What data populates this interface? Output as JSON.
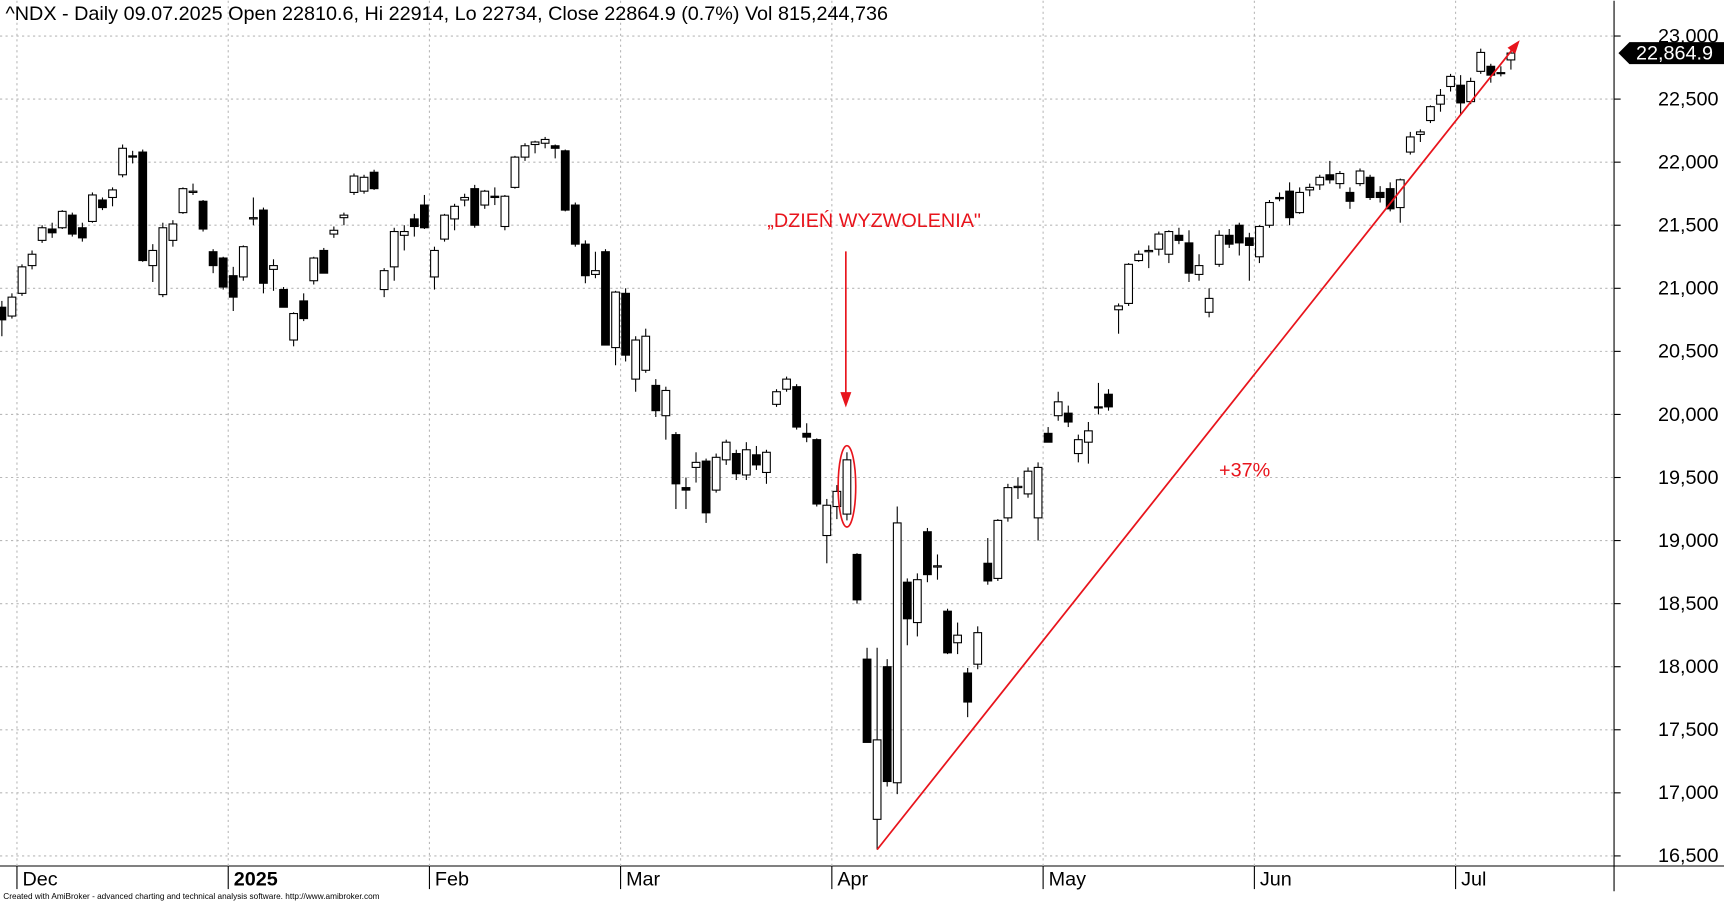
{
  "chart_data": {
    "type": "candlestick",
    "title": "^NDX - Daily 09.07.2025 Open 22810.6, Hi 22914, Lo 22734, Close 22864.9 (0.7%) Vol 815,244,736",
    "footer": "Created with AmiBroker - advanced charting and technical analysis software. http://www.amibroker.com",
    "annotations": [
      "„DZIEŃ WYZWOLENIA\"",
      "+37%"
    ],
    "last_price_label": "22,864.9",
    "up_color": "#ffffff",
    "down_color": "#000000",
    "annotation_color": "#e8141c",
    "grid": true,
    "ylim": [
      16420,
      23280
    ],
    "yticks": [
      {
        "value": 16500,
        "label": "16,500"
      },
      {
        "value": 17000,
        "label": "17,000"
      },
      {
        "value": 17500,
        "label": "17,500"
      },
      {
        "value": 18000,
        "label": "18,000"
      },
      {
        "value": 18500,
        "label": "18,500"
      },
      {
        "value": 19000,
        "label": "19,000"
      },
      {
        "value": 19500,
        "label": "19,500"
      },
      {
        "value": 20000,
        "label": "20,000"
      },
      {
        "value": 20500,
        "label": "20,500"
      },
      {
        "value": 21000,
        "label": "21,000"
      },
      {
        "value": 21500,
        "label": "21,500"
      },
      {
        "value": 22000,
        "label": "22,000"
      },
      {
        "value": 22500,
        "label": "22,500"
      },
      {
        "value": 23000,
        "label": "23,000"
      }
    ],
    "categories": [
      null,
      null,
      "Dec",
      null,
      null,
      null,
      null,
      null,
      null,
      null,
      null,
      null,
      null,
      null,
      null,
      null,
      null,
      null,
      null,
      null,
      null,
      null,
      null,
      "2025",
      null,
      null,
      null,
      null,
      null,
      null,
      null,
      null,
      null,
      null,
      null,
      null,
      null,
      null,
      null,
      null,
      null,
      null,
      null,
      "Feb",
      null,
      null,
      null,
      null,
      null,
      null,
      null,
      null,
      null,
      null,
      null,
      null,
      null,
      null,
      null,
      null,
      null,
      null,
      "Mar",
      null,
      null,
      null,
      null,
      null,
      null,
      null,
      null,
      null,
      null,
      null,
      null,
      null,
      null,
      null,
      null,
      null,
      null,
      null,
      null,
      "Apr",
      null,
      null,
      null,
      null,
      null,
      null,
      null,
      null,
      null,
      null,
      null,
      null,
      null,
      null,
      null,
      null,
      null,
      null,
      null,
      null,
      "May",
      null,
      null,
      null,
      null,
      null,
      null,
      null,
      null,
      null,
      null,
      null,
      null,
      null,
      null,
      null,
      null,
      null,
      null,
      null,
      null,
      "Jun",
      null,
      null,
      null,
      null,
      null,
      null,
      null,
      null,
      null,
      null,
      null,
      null,
      null,
      null,
      null,
      null,
      null,
      null,
      null,
      "Jul",
      null,
      null,
      null,
      null,
      null
    ],
    "open": [
      20850,
      20780,
      20960,
      21180,
      21380,
      21470,
      21480,
      21580,
      21480,
      21530,
      21700,
      21720,
      21900,
      22050,
      22080,
      21180,
      20950,
      21380,
      21600,
      21760,
      21690,
      21290,
      21240,
      21100,
      21090,
      21550,
      21620,
      21150,
      20990,
      20590,
      20900,
      21060,
      21300,
      21430,
      21560,
      21760,
      21770,
      21920,
      20990,
      21170,
      21420,
      21550,
      21660,
      21090,
      21390,
      21550,
      21700,
      21790,
      21660,
      21730,
      21490,
      21800,
      22040,
      22140,
      22150,
      22130,
      22090,
      21660,
      21350,
      21110,
      21290,
      20530,
      20960,
      20280,
      20350,
      20230,
      19990,
      19840,
      19420,
      19580,
      19630,
      19400,
      19640,
      19690,
      19520,
      19680,
      19540,
      20080,
      20200,
      20220,
      19850,
      19800,
      19040,
      19270,
      19210,
      18890,
      18060,
      16790,
      18000,
      17080,
      18670,
      18350,
      19070,
      18790,
      18440,
      18190,
      17950,
      18020,
      18820,
      18700,
      19180,
      19420,
      19370,
      19180,
      19850,
      19990,
      20010,
      19690,
      19780,
      20060,
      20160,
      20830,
      20880,
      21220,
      21290,
      21310,
      21270,
      21420,
      21360,
      21110,
      20810,
      21190,
      21420,
      21500,
      21400,
      21250,
      21500,
      21720,
      21770,
      21600,
      21780,
      21820,
      21900,
      21830,
      21760,
      21830,
      21880,
      21760,
      21790,
      21640,
      22080,
      22220,
      22330,
      22460,
      22600,
      22610,
      22480,
      22720,
      22760,
      22710,
      22810.6
    ],
    "high": [
      20900,
      20960,
      21190,
      21300,
      21500,
      21520,
      21620,
      21600,
      21520,
      21760,
      21720,
      21800,
      22140,
      22090,
      22100,
      21350,
      21520,
      21540,
      21800,
      21830,
      21700,
      21310,
      21250,
      21170,
      21340,
      21720,
      21640,
      21230,
      21010,
      20810,
      20960,
      21250,
      21320,
      21490,
      21600,
      21910,
      21900,
      21940,
      21160,
      21480,
      21500,
      21590,
      21740,
      21330,
      21590,
      21670,
      21750,
      21820,
      21780,
      21800,
      21740,
      22050,
      22150,
      22170,
      22200,
      22140,
      22100,
      21680,
      21380,
      21290,
      21310,
      20980,
      21000,
      20620,
      20680,
      20280,
      20220,
      19860,
      19500,
      19700,
      19650,
      19690,
      19800,
      19720,
      19780,
      19750,
      19720,
      20200,
      20300,
      20240,
      19930,
      19810,
      19330,
      19440,
      19700,
      18900,
      18150,
      18150,
      18060,
      19270,
      18700,
      18740,
      19100,
      18890,
      18460,
      18350,
      17990,
      18320,
      19020,
      19170,
      19450,
      19500,
      19580,
      19620,
      19900,
      20180,
      20070,
      19840,
      19940,
      20250,
      20200,
      20880,
      21200,
      21300,
      21340,
      21450,
      21460,
      21480,
      21460,
      21270,
      21000,
      21460,
      21470,
      21520,
      21440,
      21500,
      21700,
      21760,
      21840,
      21800,
      21830,
      21900,
      22010,
      21930,
      21800,
      21950,
      21900,
      21810,
      21840,
      21870,
      22240,
      22260,
      22450,
      22580,
      22700,
      22690,
      22670,
      22900,
      22780,
      22760,
      22914
    ],
    "low": [
      20620,
      20760,
      20940,
      21150,
      21360,
      21400,
      21470,
      21410,
      21370,
      21520,
      21620,
      21650,
      21880,
      21990,
      21210,
      21050,
      20930,
      21330,
      21590,
      21740,
      21450,
      21120,
      20990,
      20820,
      21060,
      21500,
      20960,
      20980,
      20850,
      20540,
      20740,
      21030,
      21120,
      21400,
      21500,
      21740,
      21750,
      21780,
      20930,
      21060,
      21300,
      21410,
      21470,
      20990,
      21370,
      21460,
      21650,
      21480,
      21630,
      21660,
      21460,
      21790,
      22010,
      22070,
      22110,
      22030,
      21610,
      21330,
      21040,
      21080,
      20550,
      20390,
      20420,
      20180,
      20330,
      19980,
      19800,
      19250,
      19250,
      19460,
      19140,
      19380,
      19600,
      19480,
      19480,
      19560,
      19450,
      20060,
      20180,
      19880,
      19780,
      19270,
      18820,
      19170,
      19160,
      18500,
      17400,
      16550,
      17050,
      16990,
      18170,
      18240,
      18670,
      18690,
      18100,
      18100,
      17600,
      17980,
      18650,
      18680,
      19150,
      19330,
      19340,
      19000,
      19780,
      19950,
      19900,
      19620,
      19610,
      20000,
      20030,
      20640,
      20860,
      21210,
      21160,
      21260,
      21200,
      21350,
      21050,
      21060,
      20770,
      21170,
      21320,
      21260,
      21060,
      21200,
      21480,
      21690,
      21500,
      21590,
      21730,
      21780,
      21830,
      21790,
      21630,
      21810,
      21700,
      21680,
      21610,
      21520,
      22060,
      22160,
      22310,
      22400,
      22560,
      22380,
      22460,
      22700,
      22630,
      22680,
      22734
    ],
    "close": [
      20750,
      20930,
      21170,
      21270,
      21480,
      21440,
      21610,
      21430,
      21400,
      21740,
      21640,
      21780,
      22110,
      22040,
      21220,
      21300,
      21480,
      21510,
      21790,
      21770,
      21470,
      21180,
      21010,
      20930,
      21330,
      21560,
      21040,
      21180,
      20850,
      20800,
      20760,
      21240,
      21120,
      21460,
      21580,
      21890,
      21880,
      21790,
      21140,
      21450,
      21450,
      21490,
      21480,
      21300,
      21580,
      21650,
      21720,
      21500,
      21770,
      21720,
      21730,
      22040,
      22130,
      22160,
      22180,
      22110,
      21620,
      21350,
      21100,
      21140,
      20550,
      20970,
      20470,
      20590,
      20620,
      20030,
      20190,
      19450,
      19400,
      19620,
      19220,
      19660,
      19780,
      19530,
      19720,
      19600,
      19700,
      20180,
      20280,
      19900,
      19820,
      19290,
      19280,
      19390,
      19640,
      18530,
      17400,
      17420,
      17090,
      19140,
      18380,
      18690,
      18730,
      18800,
      18110,
      18250,
      17720,
      18270,
      18680,
      19160,
      19420,
      19430,
      19550,
      19580,
      19780,
      20100,
      19940,
      19800,
      19870,
      20060,
      20060,
      20860,
      21190,
      21270,
      21300,
      21430,
      21450,
      21380,
      21120,
      21180,
      20920,
      21420,
      21350,
      21360,
      21340,
      21490,
      21680,
      21710,
      21560,
      21760,
      21800,
      21880,
      21860,
      21910,
      21690,
      21930,
      21720,
      21720,
      21630,
      21860,
      22200,
      22240,
      22440,
      22530,
      22680,
      22470,
      22640,
      22870,
      22690,
      22710,
      22864.9
    ]
  }
}
